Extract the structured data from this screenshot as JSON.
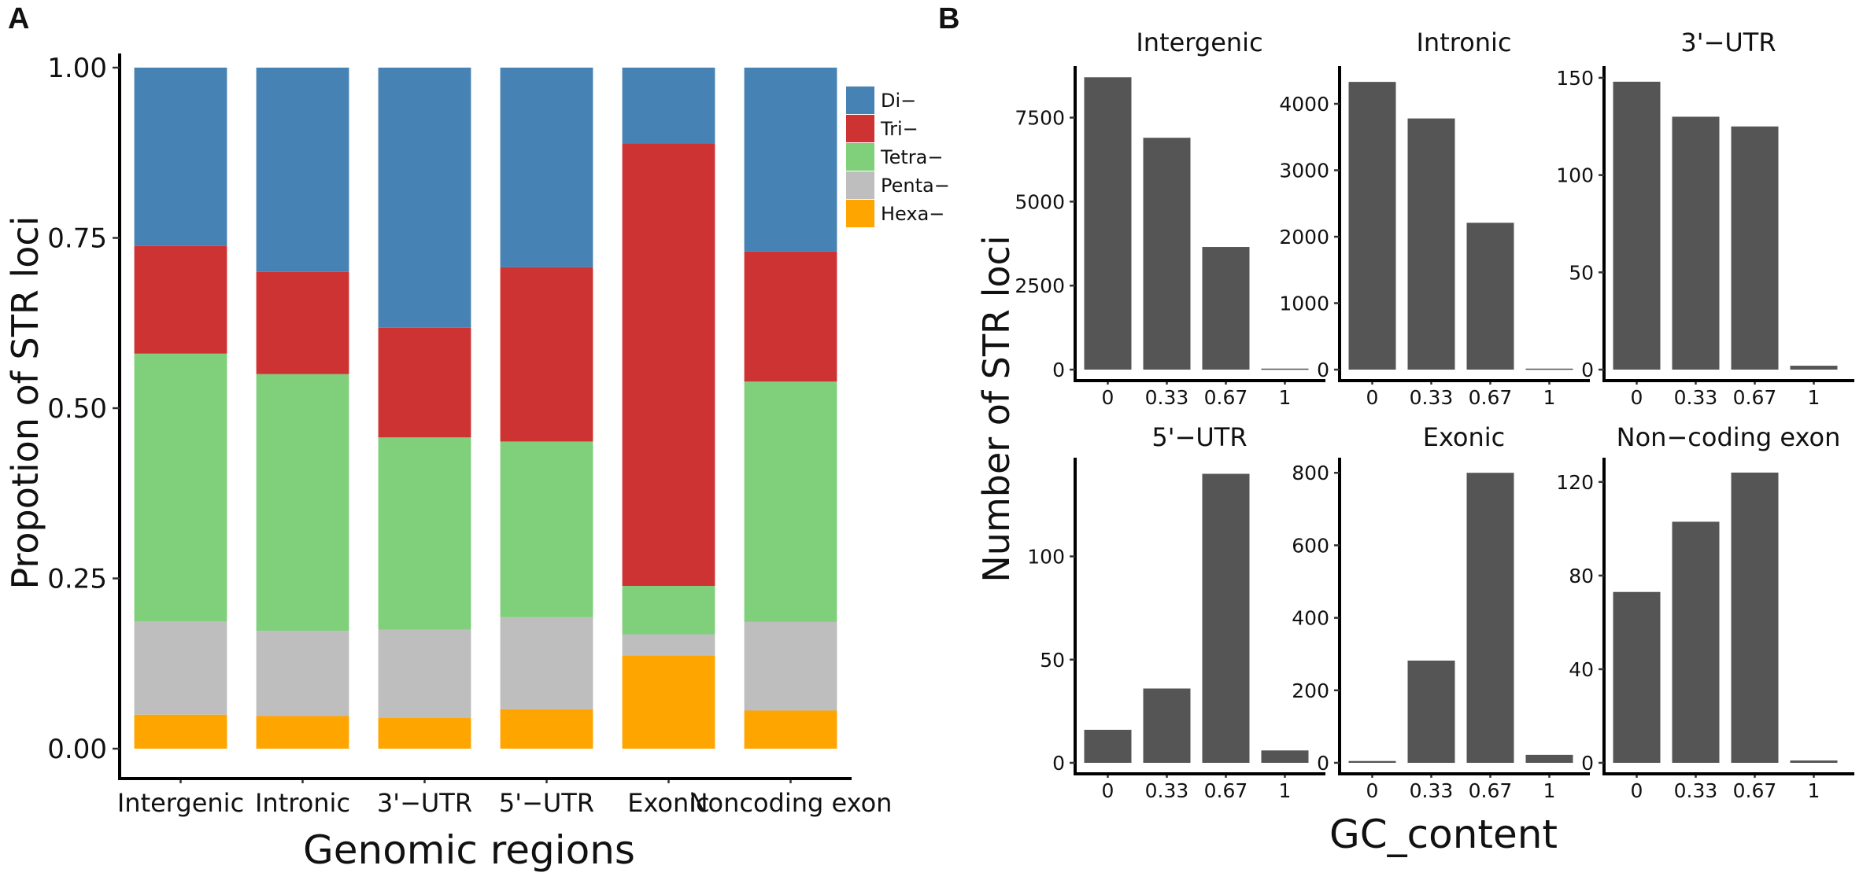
{
  "chart_data": [
    {
      "type": "bar",
      "stacked": true,
      "panel_label": "A",
      "xlabel": "Genomic regions",
      "ylabel": "Propotion of STR loci",
      "ylim": [
        0,
        1
      ],
      "yticks": [
        "0.00",
        "0.25",
        "0.50",
        "0.75",
        "1.00"
      ],
      "categories": [
        "Intergenic",
        "Intronic",
        "3'−UTR",
        "5'−UTR",
        "Exonic",
        "Noncoding exon"
      ],
      "legend_position": "top-right",
      "series": [
        {
          "name": "Hexa−",
          "color": "#FFA500",
          "values": [
            0.05,
            0.048,
            0.045,
            0.058,
            0.137,
            0.056
          ]
        },
        {
          "name": "Penta−",
          "color": "#BEBEBE",
          "values": [
            0.137,
            0.125,
            0.13,
            0.135,
            0.031,
            0.13
          ]
        },
        {
          "name": "Tetra−",
          "color": "#7FCF7B",
          "values": [
            0.393,
            0.377,
            0.282,
            0.258,
            0.071,
            0.353
          ]
        },
        {
          "name": "Tri−",
          "color": "#CE3333",
          "values": [
            0.158,
            0.15,
            0.161,
            0.256,
            0.65,
            0.191
          ]
        },
        {
          "name": "Di−",
          "color": "#4682B4",
          "values": [
            0.262,
            0.3,
            0.382,
            0.293,
            0.111,
            0.27
          ]
        }
      ]
    },
    {
      "type": "bar",
      "panel_label": "B",
      "xlabel": "GC_content",
      "ylabel": "Number of STR loci",
      "categories": [
        "0",
        "0.33",
        "0.67",
        "1"
      ],
      "bar_color": "#555555",
      "facets": [
        {
          "title": "Intergenic",
          "ylim": [
            0,
            8800
          ],
          "yticks": [
            0,
            2500,
            5000,
            7500
          ],
          "values": [
            8700,
            6900,
            3650,
            30
          ]
        },
        {
          "title": "Intronic",
          "ylim": [
            0,
            4450
          ],
          "yticks": [
            0,
            1000,
            2000,
            3000,
            4000
          ],
          "values": [
            4330,
            3780,
            2210,
            15
          ]
        },
        {
          "title": "3'−UTR",
          "ylim": [
            0,
            152
          ],
          "yticks": [
            0,
            50,
            100,
            150
          ],
          "values": [
            148,
            130,
            125,
            2
          ]
        },
        {
          "title": "5'−UTR",
          "ylim": [
            0,
            144
          ],
          "yticks": [
            0,
            50,
            100
          ],
          "values": [
            16,
            36,
            140,
            6
          ]
        },
        {
          "title": "Exonic",
          "ylim": [
            0,
            820
          ],
          "yticks": [
            0,
            200,
            400,
            600,
            800
          ],
          "values": [
            5,
            282,
            800,
            22
          ]
        },
        {
          "title": "Non−coding exon",
          "ylim": [
            0,
            127
          ],
          "yticks": [
            0,
            40,
            80,
            120
          ],
          "values": [
            73,
            103,
            124,
            1
          ]
        }
      ]
    }
  ]
}
